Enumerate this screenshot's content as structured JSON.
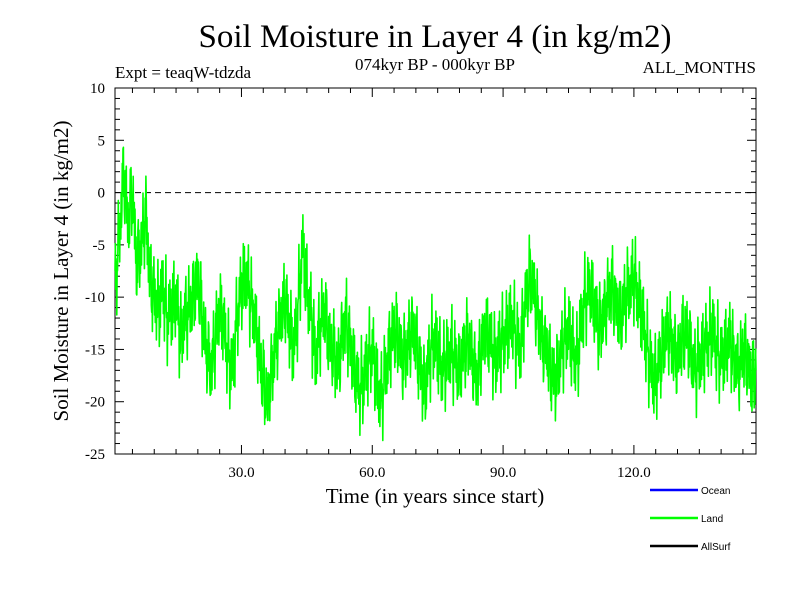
{
  "chart_data": {
    "type": "line",
    "title": "Soil Moisture in Layer 4 (in kg/m2)",
    "experiment": "Expt = teaqW-tdzda",
    "period": "074kyr BP - 000kyr BP",
    "season": "ALL_MONTHS",
    "xlabel": "Time (in years since start)",
    "ylabel": "Soil Moisture in Layer 4 (in kg/m2)",
    "xlim": [
      1,
      148
    ],
    "ylim": [
      -25,
      10
    ],
    "x_ticks": [
      30,
      60,
      90,
      120
    ],
    "x_tick_labels": [
      "30.0",
      "60.0",
      "90.0",
      "120.0"
    ],
    "y_ticks": [
      10,
      5,
      0,
      -5,
      -10,
      -15,
      -20,
      -25
    ],
    "y_tick_labels": [
      "10",
      "5",
      "0",
      "-5",
      "-10",
      "-15",
      "-20",
      "-25"
    ],
    "reference_line": {
      "y": 0,
      "style": "dashed"
    },
    "legend": [
      {
        "name": "Ocean",
        "color": "#0000ff"
      },
      {
        "name": "Land",
        "color": "#00ff00"
      },
      {
        "name": "AllSurf",
        "color": "#000000"
      }
    ],
    "series": [
      {
        "name": "Land",
        "color": "#00ff00",
        "x_start": 1,
        "x_end": 148,
        "values": [
          -9,
          -4,
          2,
          -3,
          0,
          -7,
          -5,
          -2,
          -8,
          -10,
          -11,
          -9,
          -12,
          -11,
          -10,
          -14,
          -12,
          -11,
          -10,
          -8,
          -12,
          -15,
          -17,
          -14,
          -11,
          -13,
          -16,
          -17,
          -12,
          -9,
          -8,
          -10,
          -12,
          -15,
          -18,
          -20,
          -17,
          -14,
          -12,
          -10,
          -13,
          -15,
          -11,
          -5,
          -9,
          -12,
          -16,
          -13,
          -11,
          -14,
          -15,
          -17,
          -14,
          -12,
          -15,
          -17,
          -19,
          -18,
          -16,
          -15,
          -18,
          -20,
          -17,
          -15,
          -13,
          -14,
          -16,
          -15,
          -13,
          -14,
          -17,
          -19,
          -16,
          -14,
          -15,
          -17,
          -16,
          -15,
          -16,
          -17,
          -15,
          -14,
          -16,
          -18,
          -15,
          -13,
          -14,
          -16,
          -15,
          -14,
          -13,
          -12,
          -14,
          -15,
          -11,
          -8,
          -9,
          -12,
          -14,
          -15,
          -17,
          -18,
          -16,
          -14,
          -13,
          -15,
          -16,
          -12,
          -10,
          -9,
          -11,
          -13,
          -12,
          -10,
          -9,
          -11,
          -12,
          -10,
          -9,
          -8,
          -10,
          -12,
          -15,
          -17,
          -18,
          -16,
          -14,
          -13,
          -15,
          -16,
          -14,
          -13,
          -15,
          -17,
          -16,
          -15,
          -14,
          -13,
          -15,
          -16,
          -15,
          -14,
          -16,
          -17,
          -15,
          -16,
          -18,
          -17
        ]
      }
    ]
  }
}
